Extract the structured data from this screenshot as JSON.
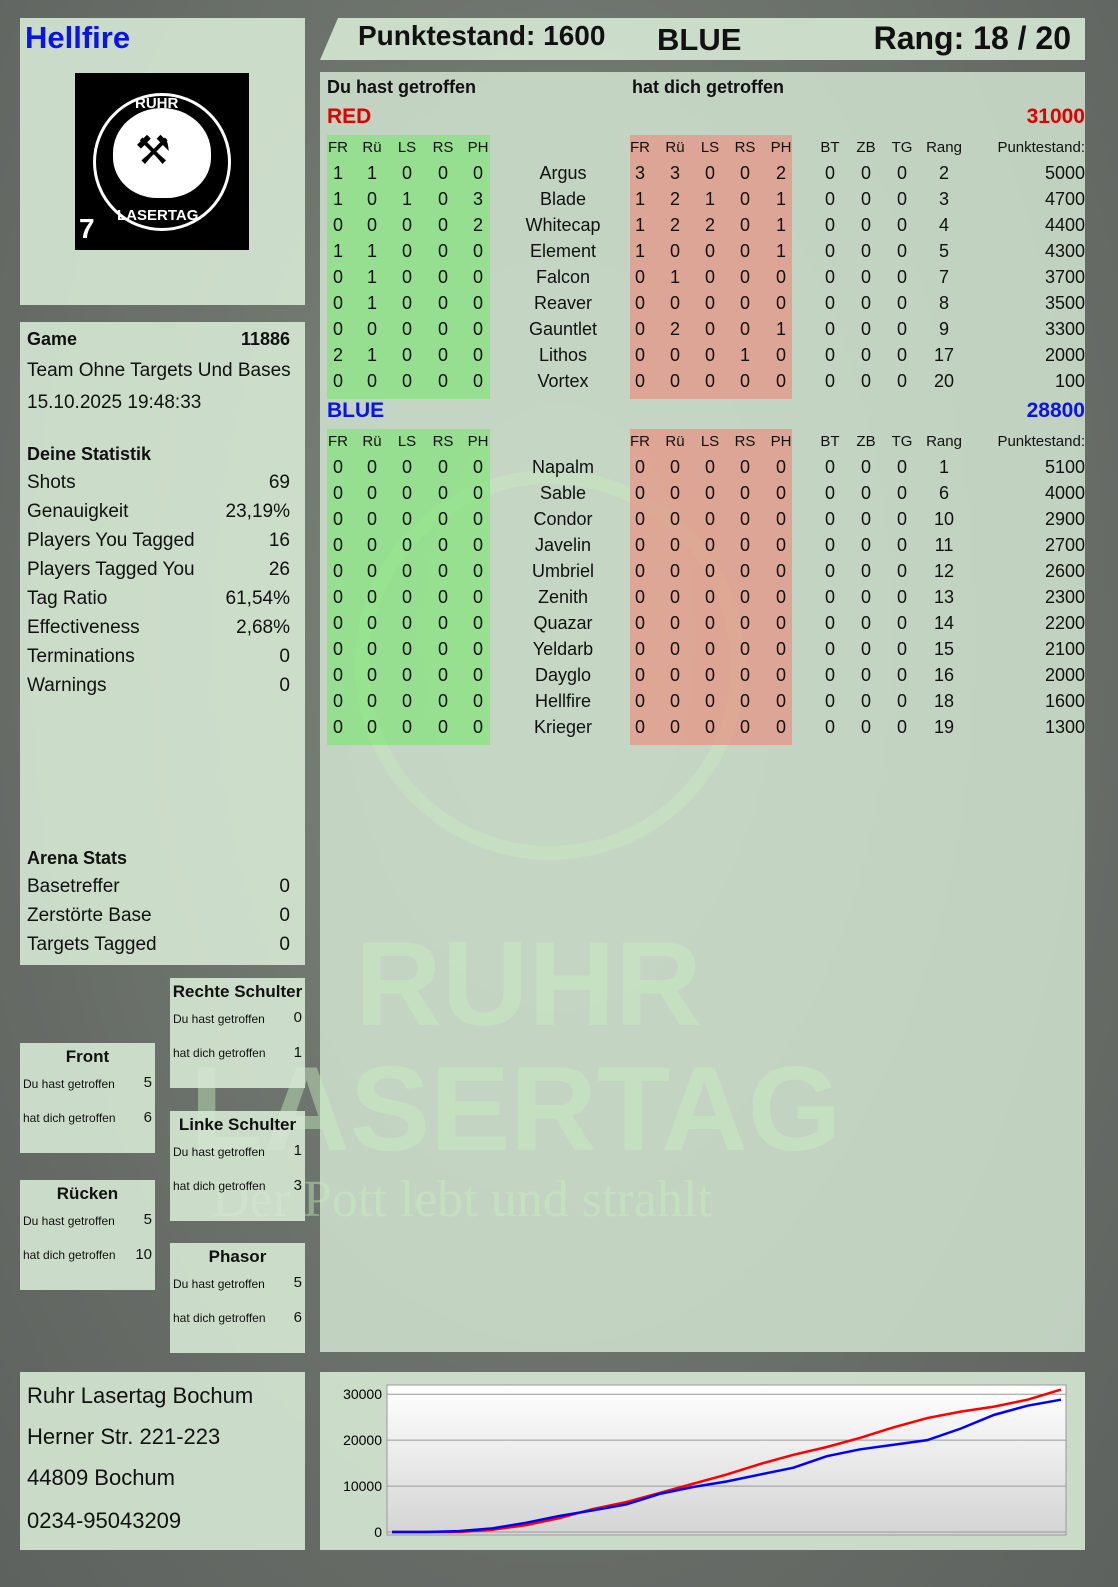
{
  "player": {
    "name": "Hellfire",
    "name_color": "#0a14e6"
  },
  "header": {
    "score": "Punktestand: 1600",
    "team": "BLUE",
    "rank": "Rang: 18 / 20"
  },
  "logo": {
    "text_top": "RUHR",
    "text_bottom": "LASERTAG",
    "number": "7"
  },
  "main": {
    "you_hit": "Du hast getroffen",
    "hit_you": "hat dich getroffen",
    "columns": {
      "hits": [
        "FR",
        "Rü",
        "LS",
        "RS",
        "PH"
      ],
      "extra": [
        "BT",
        "ZB",
        "TG",
        "Rang"
      ],
      "score": "Punktestand:"
    },
    "teams": [
      {
        "name": "RED",
        "color": "#e00000",
        "total": "31000",
        "players": [
          {
            "name": "Argus",
            "you": [
              1,
              1,
              0,
              0,
              0
            ],
            "them": [
              3,
              3,
              0,
              0,
              2
            ],
            "extra": [
              0,
              0,
              0,
              2
            ],
            "score": 5000
          },
          {
            "name": "Blade",
            "you": [
              1,
              0,
              1,
              0,
              3
            ],
            "them": [
              1,
              2,
              1,
              0,
              1
            ],
            "extra": [
              0,
              0,
              0,
              3
            ],
            "score": 4700
          },
          {
            "name": "Whitecap",
            "you": [
              0,
              0,
              0,
              0,
              2
            ],
            "them": [
              1,
              2,
              2,
              0,
              1
            ],
            "extra": [
              0,
              0,
              0,
              4
            ],
            "score": 4400
          },
          {
            "name": "Element",
            "you": [
              1,
              1,
              0,
              0,
              0
            ],
            "them": [
              1,
              0,
              0,
              0,
              1
            ],
            "extra": [
              0,
              0,
              0,
              5
            ],
            "score": 4300
          },
          {
            "name": "Falcon",
            "you": [
              0,
              1,
              0,
              0,
              0
            ],
            "them": [
              0,
              1,
              0,
              0,
              0
            ],
            "extra": [
              0,
              0,
              0,
              7
            ],
            "score": 3700
          },
          {
            "name": "Reaver",
            "you": [
              0,
              1,
              0,
              0,
              0
            ],
            "them": [
              0,
              0,
              0,
              0,
              0
            ],
            "extra": [
              0,
              0,
              0,
              8
            ],
            "score": 3500
          },
          {
            "name": "Gauntlet",
            "you": [
              0,
              0,
              0,
              0,
              0
            ],
            "them": [
              0,
              2,
              0,
              0,
              1
            ],
            "extra": [
              0,
              0,
              0,
              9
            ],
            "score": 3300
          },
          {
            "name": "Lithos",
            "you": [
              2,
              1,
              0,
              0,
              0
            ],
            "them": [
              0,
              0,
              0,
              1,
              0
            ],
            "extra": [
              0,
              0,
              0,
              17
            ],
            "score": 2000
          },
          {
            "name": "Vortex",
            "you": [
              0,
              0,
              0,
              0,
              0
            ],
            "them": [
              0,
              0,
              0,
              0,
              0
            ],
            "extra": [
              0,
              0,
              0,
              20
            ],
            "score": 100
          }
        ]
      },
      {
        "name": "BLUE",
        "color": "#0a14e6",
        "total": "28800",
        "players": [
          {
            "name": "Napalm",
            "you": [
              0,
              0,
              0,
              0,
              0
            ],
            "them": [
              0,
              0,
              0,
              0,
              0
            ],
            "extra": [
              0,
              0,
              0,
              1
            ],
            "score": 5100
          },
          {
            "name": "Sable",
            "you": [
              0,
              0,
              0,
              0,
              0
            ],
            "them": [
              0,
              0,
              0,
              0,
              0
            ],
            "extra": [
              0,
              0,
              0,
              6
            ],
            "score": 4000
          },
          {
            "name": "Condor",
            "you": [
              0,
              0,
              0,
              0,
              0
            ],
            "them": [
              0,
              0,
              0,
              0,
              0
            ],
            "extra": [
              0,
              0,
              0,
              10
            ],
            "score": 2900
          },
          {
            "name": "Javelin",
            "you": [
              0,
              0,
              0,
              0,
              0
            ],
            "them": [
              0,
              0,
              0,
              0,
              0
            ],
            "extra": [
              0,
              0,
              0,
              11
            ],
            "score": 2700
          },
          {
            "name": "Umbriel",
            "you": [
              0,
              0,
              0,
              0,
              0
            ],
            "them": [
              0,
              0,
              0,
              0,
              0
            ],
            "extra": [
              0,
              0,
              0,
              12
            ],
            "score": 2600
          },
          {
            "name": "Zenith",
            "you": [
              0,
              0,
              0,
              0,
              0
            ],
            "them": [
              0,
              0,
              0,
              0,
              0
            ],
            "extra": [
              0,
              0,
              0,
              13
            ],
            "score": 2300
          },
          {
            "name": "Quazar",
            "you": [
              0,
              0,
              0,
              0,
              0
            ],
            "them": [
              0,
              0,
              0,
              0,
              0
            ],
            "extra": [
              0,
              0,
              0,
              14
            ],
            "score": 2200
          },
          {
            "name": "Yeldarb",
            "you": [
              0,
              0,
              0,
              0,
              0
            ],
            "them": [
              0,
              0,
              0,
              0,
              0
            ],
            "extra": [
              0,
              0,
              0,
              15
            ],
            "score": 2100
          },
          {
            "name": "Dayglo",
            "you": [
              0,
              0,
              0,
              0,
              0
            ],
            "them": [
              0,
              0,
              0,
              0,
              0
            ],
            "extra": [
              0,
              0,
              0,
              16
            ],
            "score": 2000
          },
          {
            "name": "Hellfire",
            "you": [
              0,
              0,
              0,
              0,
              0
            ],
            "them": [
              0,
              0,
              0,
              0,
              0
            ],
            "extra": [
              0,
              0,
              0,
              18
            ],
            "score": 1600
          },
          {
            "name": "Krieger",
            "you": [
              0,
              0,
              0,
              0,
              0
            ],
            "them": [
              0,
              0,
              0,
              0,
              0
            ],
            "extra": [
              0,
              0,
              0,
              19
            ],
            "score": 1300
          }
        ]
      }
    ]
  },
  "game": {
    "label": "Game",
    "id": "11886",
    "mode": "Team Ohne Targets Und Bases",
    "datetime": "15.10.2025 19:48:33"
  },
  "stats": {
    "title": "Deine Statistik",
    "items": [
      {
        "label": "Shots",
        "value": "69"
      },
      {
        "label": "Genauigkeit",
        "value": "23,19%"
      },
      {
        "label": "Players You Tagged",
        "value": "16"
      },
      {
        "label": "Players Tagged You",
        "value": "26"
      },
      {
        "label": "Tag Ratio",
        "value": "61,54%"
      },
      {
        "label": "Effectiveness",
        "value": "2,68%"
      },
      {
        "label": "Terminations",
        "value": "0"
      },
      {
        "label": "Warnings",
        "value": "0"
      }
    ]
  },
  "arena": {
    "title": "Arena Stats",
    "items": [
      {
        "label": "Basetreffer",
        "value": "0"
      },
      {
        "label": "Zerstörte Base",
        "value": "0"
      },
      {
        "label": "Targets Tagged",
        "value": "0"
      }
    ]
  },
  "zones": {
    "you_hit": "Du hast getroffen",
    "hit_you": "hat dich getroffen",
    "items": [
      {
        "name": "Rechte Schulter",
        "you": "0",
        "them": "1"
      },
      {
        "name": "Front",
        "you": "5",
        "them": "6"
      },
      {
        "name": "Linke Schulter",
        "you": "1",
        "them": "3"
      },
      {
        "name": "Rücken",
        "you": "5",
        "them": "10"
      },
      {
        "name": "Phasor",
        "you": "5",
        "them": "6"
      }
    ]
  },
  "address": {
    "lines": [
      "Ruhr Lasertag Bochum",
      "Herner Str. 221-223",
      "44809 Bochum",
      "0234-95043209"
    ]
  },
  "watermark": {
    "line1": "RUHR",
    "line2": "LASERTAG",
    "tagline": "Der Pott lebt und strahlt"
  },
  "chart_data": {
    "type": "line",
    "title": "",
    "xlabel": "",
    "ylabel": "",
    "ylim": [
      0,
      32000
    ],
    "yticks": [
      0,
      10000,
      20000,
      30000
    ],
    "grid": true,
    "series": [
      {
        "color": "#ff0000",
        "values": [
          0,
          0,
          0,
          500,
          1500,
          3000,
          5000,
          6500,
          8500,
          10500,
          12500,
          14800,
          16800,
          18500,
          20500,
          22800,
          24800,
          26200,
          27300,
          28800,
          31000
        ]
      },
      {
        "color": "#0000ff",
        "values": [
          0,
          0,
          200,
          800,
          2000,
          3500,
          4700,
          6000,
          8300,
          9800,
          11000,
          12500,
          14000,
          16500,
          18000,
          19000,
          20000,
          22500,
          25500,
          27500,
          28800
        ]
      }
    ]
  }
}
